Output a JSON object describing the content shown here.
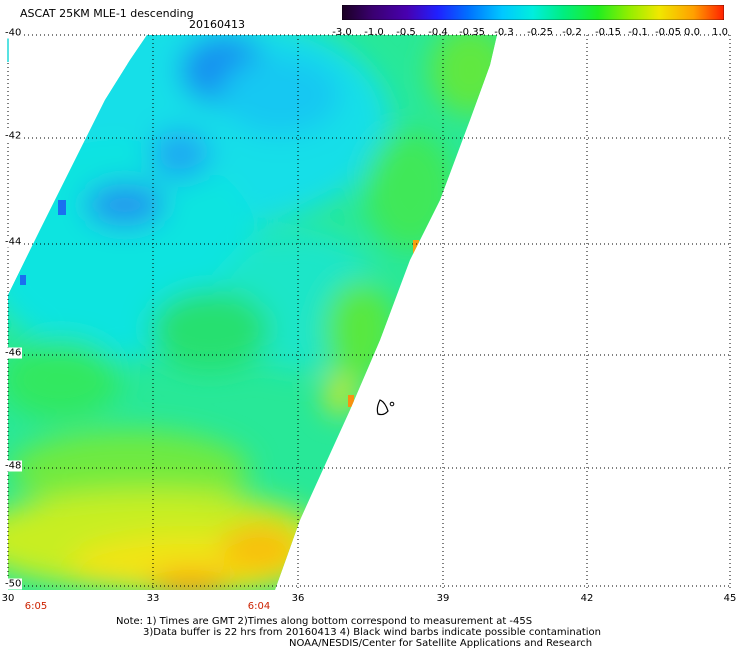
{
  "header": {
    "title": "ASCAT 25KM MLE-1 descending",
    "date": "20160413"
  },
  "colorbar": {
    "labels": [
      "-3.0",
      "-1.0",
      "-0.5",
      "-0.4",
      "-0.35",
      "-0.3",
      "-0.25",
      "-0.2",
      "-0.15",
      "-0.1",
      "-0.05",
      "0.0",
      "1.0"
    ],
    "colors": [
      "#1a0022",
      "#3a0070",
      "#4800b0",
      "#2020ff",
      "#0070ff",
      "#00b4ff",
      "#00eedd",
      "#00ee80",
      "#20ee20",
      "#80ee00",
      "#e0ee00",
      "#ffb000",
      "#ff3000"
    ]
  },
  "axes": {
    "lat_labels": [
      "-40",
      "-42",
      "-44",
      "-46",
      "-48",
      "-50"
    ],
    "lon_labels": [
      "30",
      "33",
      "36",
      "39",
      "42",
      "45"
    ],
    "time_labels": [
      "6:05",
      "6:04"
    ]
  },
  "notes": {
    "line1": "Note: 1) Times are GMT 2)Times along bottom correspond to measurement at -45S",
    "line2": "3)Data buffer is 22 hrs from 20160413 4) Black wind barbs indicate possible contamination",
    "line3": "NOAA/NESDIS/Center for Satellite Applications and Research"
  }
}
